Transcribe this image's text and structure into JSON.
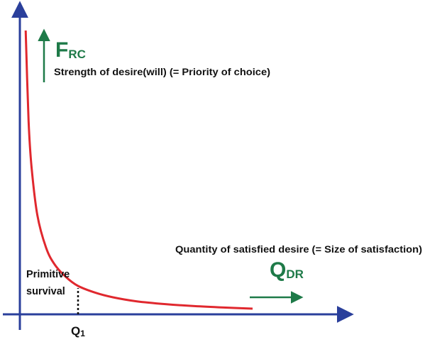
{
  "chart_data": {
    "type": "line",
    "title": "",
    "y_axis": {
      "symbol_main": "F",
      "symbol_sub": "RC",
      "label": "Strength of desire(will) (= Priority of choice)"
    },
    "x_axis": {
      "symbol_main": "Q",
      "symbol_sub": "DR",
      "label": "Quantity of satisfied desire (=  Size of satisfaction)"
    },
    "marker": {
      "tick_main": "Q",
      "tick_sub": "1",
      "note_line1": "Primitive",
      "note_line2": "survival",
      "x": 1
    },
    "series": [
      {
        "values_x": [
          0.1,
          0.15,
          0.2,
          0.3,
          0.45,
          0.6,
          0.8,
          1.0,
          1.3,
          1.6,
          2.0,
          2.5,
          3.0,
          3.5,
          4.0
        ],
        "values_y": [
          10,
          6.8,
          5.2,
          3.5,
          2.35,
          1.75,
          1.3,
          1.0,
          0.76,
          0.6,
          0.46,
          0.36,
          0.29,
          0.24,
          0.2
        ]
      }
    ],
    "xlim": [
      0,
      4.6
    ],
    "ylim": [
      0,
      11.5
    ],
    "grid": false,
    "colors": {
      "axis": "#2a3f9b",
      "curve": "#e0282e",
      "symbol": "#1e7a48",
      "text": "#111111"
    }
  }
}
